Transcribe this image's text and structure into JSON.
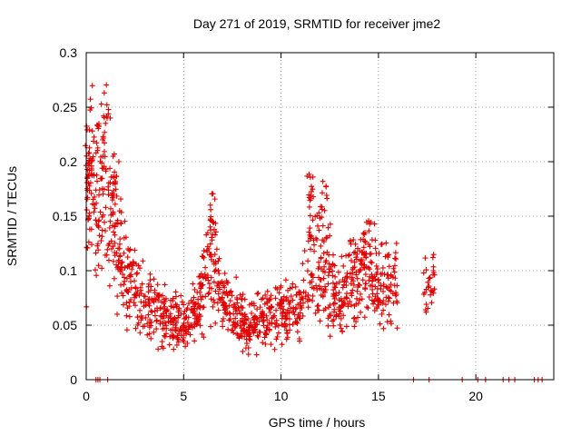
{
  "chart_data": {
    "type": "scatter",
    "title": "Day 271 of 2019, SRMTID for receiver jme2",
    "xlabel": "GPS time / hours",
    "ylabel": "SRMTID / TECUs",
    "xlim": [
      0,
      24
    ],
    "ylim": [
      0,
      0.3
    ],
    "xticks": [
      "0",
      "5",
      "10",
      "15",
      "20"
    ],
    "yticks": [
      "0",
      "0.05",
      "0.1",
      "0.15",
      "0.2",
      "0.25",
      "0.3"
    ],
    "grid": true,
    "marker": "plus",
    "color": "#e00000",
    "profile": [
      [
        0.0,
        0.17
      ],
      [
        0.3,
        0.19
      ],
      [
        0.6,
        0.14
      ],
      [
        1.0,
        0.2
      ],
      [
        1.3,
        0.15
      ],
      [
        1.7,
        0.11
      ],
      [
        2.2,
        0.09
      ],
      [
        2.7,
        0.075
      ],
      [
        3.2,
        0.068
      ],
      [
        3.7,
        0.06
      ],
      [
        4.2,
        0.052
      ],
      [
        4.7,
        0.05
      ],
      [
        5.2,
        0.052
      ],
      [
        5.7,
        0.065
      ],
      [
        6.1,
        0.095
      ],
      [
        6.5,
        0.11
      ],
      [
        6.9,
        0.075
      ],
      [
        7.5,
        0.06
      ],
      [
        8.2,
        0.052
      ],
      [
        9.0,
        0.055
      ],
      [
        9.8,
        0.06
      ],
      [
        10.5,
        0.065
      ],
      [
        11.0,
        0.07
      ],
      [
        11.5,
        0.11
      ],
      [
        12.0,
        0.1
      ],
      [
        12.5,
        0.09
      ],
      [
        13.0,
        0.07
      ],
      [
        13.5,
        0.09
      ],
      [
        14.0,
        0.095
      ],
      [
        14.5,
        0.1
      ],
      [
        15.0,
        0.085
      ],
      [
        15.5,
        0.09
      ],
      [
        16.0,
        0.08
      ]
    ],
    "spikes": [
      {
        "x": 0.1,
        "y": 0.22
      },
      {
        "x": 0.3,
        "y": 0.2
      },
      {
        "x": 0.5,
        "y": 0.235
      },
      {
        "x": 1.0,
        "y": 0.25
      },
      {
        "x": 1.5,
        "y": 0.21
      },
      {
        "x": 1.6,
        "y": 0.195
      },
      {
        "x": 6.5,
        "y": 0.175
      },
      {
        "x": 6.3,
        "y": 0.16
      },
      {
        "x": 11.5,
        "y": 0.195
      },
      {
        "x": 12.2,
        "y": 0.185
      },
      {
        "x": 12.0,
        "y": 0.165
      },
      {
        "x": 11.6,
        "y": 0.18
      }
    ],
    "tail_cluster": {
      "x": [
        17.3,
        17.9
      ],
      "y": [
        0.06,
        0.115
      ]
    },
    "zero_points_x": [
      0.5,
      0.6,
      0.7,
      1.1,
      16.8,
      17.6,
      19.3,
      20.1,
      20.5,
      21.4,
      21.7,
      22.0,
      23.0,
      23.2,
      23.4
    ]
  }
}
